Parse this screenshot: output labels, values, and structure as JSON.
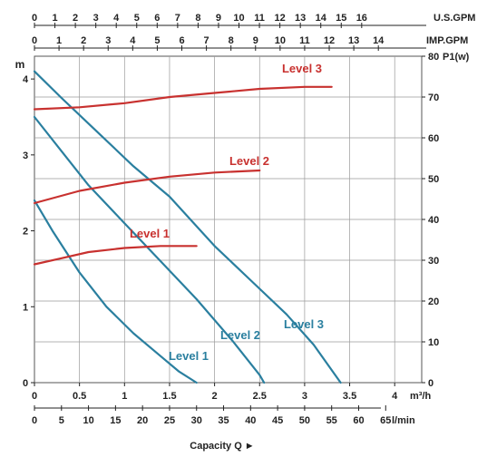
{
  "chart_data": {
    "type": "line",
    "title": "",
    "xlabel": "Capacity Q ►",
    "ylabel_left": "m",
    "ylabel_right": "P1(w)",
    "xlim": [
      0,
      4.3
    ],
    "ylim_head": [
      0,
      4.3
    ],
    "ylim_power": [
      0,
      80
    ],
    "grid": true,
    "axes": {
      "usgpm": {
        "label": "U.S.GPM",
        "ticks": [
          "0",
          "1",
          "2",
          "3",
          "4",
          "5",
          "6",
          "7",
          "8",
          "9",
          "10",
          "11",
          "12",
          "13",
          "14",
          "15",
          "16"
        ]
      },
      "impgpm": {
        "label": "IMP.GPM",
        "ticks": [
          "0",
          "1",
          "2",
          "3",
          "4",
          "5",
          "6",
          "7",
          "8",
          "9",
          "10",
          "11",
          "12",
          "13",
          "14"
        ]
      },
      "m3h": {
        "label": "m³/h",
        "ticks": [
          "0",
          "0.5",
          "1",
          "1.5",
          "2",
          "2.5",
          "3",
          "3.5",
          "4"
        ]
      },
      "lmin": {
        "label": "l/min",
        "ticks": [
          "0",
          "5",
          "10",
          "15",
          "20",
          "25",
          "30",
          "35",
          "40",
          "45",
          "50",
          "55",
          "60",
          "65"
        ]
      },
      "head": {
        "label": "m",
        "ticks": [
          "0",
          "1",
          "2",
          "3",
          "4"
        ]
      },
      "power": {
        "label": "P1(w)",
        "ticks": [
          "0",
          "10",
          "20",
          "30",
          "40",
          "50",
          "60",
          "70",
          "80"
        ]
      }
    },
    "series": [
      {
        "name": "Level 1",
        "kind": "head",
        "color": "#2a7f9f",
        "x": [
          0,
          0.2,
          0.5,
          0.8,
          1.1,
          1.4,
          1.6,
          1.8
        ],
        "y": [
          2.4,
          2.0,
          1.45,
          1.0,
          0.65,
          0.35,
          0.15,
          0
        ]
      },
      {
        "name": "Level 2",
        "kind": "head",
        "color": "#2a7f9f",
        "x": [
          0,
          0.3,
          0.6,
          1.0,
          1.4,
          1.8,
          2.2,
          2.5,
          2.55
        ],
        "y": [
          3.5,
          3.05,
          2.6,
          2.1,
          1.6,
          1.1,
          0.55,
          0.1,
          0
        ]
      },
      {
        "name": "Level 3",
        "kind": "head",
        "color": "#2a7f9f",
        "x": [
          0,
          0.3,
          0.7,
          1.1,
          1.5,
          2.0,
          2.4,
          2.8,
          3.1,
          3.4
        ],
        "y": [
          4.1,
          3.75,
          3.3,
          2.85,
          2.45,
          1.8,
          1.35,
          0.9,
          0.5,
          0
        ]
      },
      {
        "name": "Level 1",
        "kind": "power",
        "color": "#c8312f",
        "x": [
          0,
          0.3,
          0.6,
          1.0,
          1.4,
          1.8
        ],
        "y": [
          29,
          30.5,
          32,
          33,
          33.5,
          33.5
        ]
      },
      {
        "name": "Level 2",
        "kind": "power",
        "color": "#c8312f",
        "x": [
          0,
          0.5,
          1.0,
          1.5,
          2.0,
          2.5
        ],
        "y": [
          44,
          47,
          49,
          50.5,
          51.5,
          52
        ]
      },
      {
        "name": "Level 3",
        "kind": "power",
        "color": "#c8312f",
        "x": [
          0,
          0.5,
          1.0,
          1.5,
          2.0,
          2.5,
          3.0,
          3.3
        ],
        "y": [
          67,
          67.5,
          68.5,
          70,
          71,
          72,
          72.5,
          72.5
        ]
      }
    ],
    "annotations": [
      {
        "text": "Level 3",
        "color": "#c8312f"
      },
      {
        "text": "Level 2",
        "color": "#c8312f"
      },
      {
        "text": "Level 1",
        "color": "#c8312f"
      },
      {
        "text": "Level 3",
        "color": "#2a7f9f"
      },
      {
        "text": "Level 2",
        "color": "#2a7f9f"
      },
      {
        "text": "Level 1",
        "color": "#2a7f9f"
      }
    ]
  }
}
